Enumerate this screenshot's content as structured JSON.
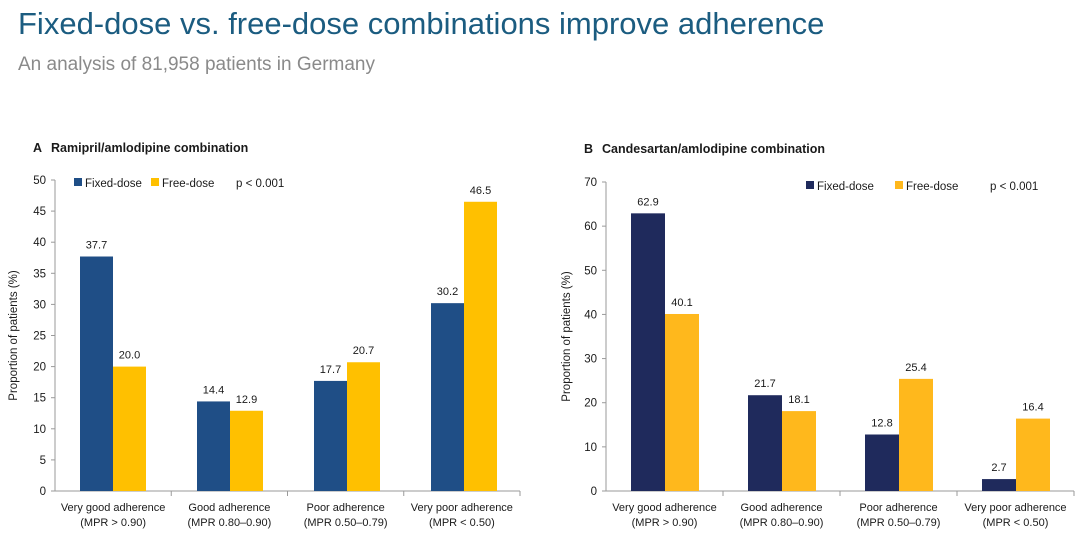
{
  "header": {
    "title": "Fixed-dose vs. free-dose combinations improve adherence",
    "subtitle": "An analysis of 81,958 patients in Germany"
  },
  "chart_data": [
    {
      "type": "bar",
      "panel_letter": "A",
      "title": "Ramipril/amlodipine combination",
      "ylabel": "Proportion of patients (%)",
      "ylim": [
        0,
        50
      ],
      "yticks": [
        0,
        5,
        10,
        15,
        20,
        25,
        30,
        35,
        40,
        45,
        50
      ],
      "categories": [
        [
          "Very good adherence",
          "(MPR > 0.90)"
        ],
        [
          "Good adherence",
          "(MPR 0.80–0.90)"
        ],
        [
          "Poor adherence",
          "(MPR 0.50–0.79)"
        ],
        [
          "Very poor adherence",
          "(MPR < 0.50)"
        ]
      ],
      "series": [
        {
          "name": "Fixed-dose",
          "color": "#1f4e86",
          "values": [
            37.7,
            14.4,
            17.7,
            30.2
          ],
          "labels": [
            "37.7",
            "14.4",
            "17.7",
            "30.2"
          ]
        },
        {
          "name": "Free-dose",
          "color": "#ffc000",
          "values": [
            20.0,
            12.9,
            20.7,
            46.5
          ],
          "labels": [
            "20.0",
            "12.9",
            "20.7",
            "46.5"
          ]
        }
      ],
      "annotation": "p < 0.001",
      "legend_position": "top-left",
      "grid": false
    },
    {
      "type": "bar",
      "panel_letter": "B",
      "title": "Candesartan/amlodipine combination",
      "ylabel": "Proportion of patients (%)",
      "ylim": [
        0,
        70
      ],
      "yticks": [
        0,
        10,
        20,
        30,
        40,
        50,
        60,
        70
      ],
      "categories": [
        [
          "Very good adherence",
          "(MPR > 0.90)"
        ],
        [
          "Good adherence",
          "(MPR 0.80–0.90)"
        ],
        [
          "Poor adherence",
          "(MPR 0.50–0.79)"
        ],
        [
          "Very poor adherence",
          "(MPR < 0.50)"
        ]
      ],
      "series": [
        {
          "name": "Fixed-dose",
          "color": "#1f2a5c",
          "values": [
            62.9,
            21.7,
            12.8,
            2.7
          ],
          "labels": [
            "62.9",
            "21.7",
            "12.8",
            "2.7"
          ]
        },
        {
          "name": "Free-dose",
          "color": "#ffb81c",
          "values": [
            40.1,
            18.1,
            25.4,
            16.4
          ],
          "labels": [
            "40.1",
            "18.1",
            "25.4",
            "16.4"
          ]
        }
      ],
      "annotation": "p < 0.001",
      "legend_position": "top-right",
      "grid": false
    }
  ]
}
